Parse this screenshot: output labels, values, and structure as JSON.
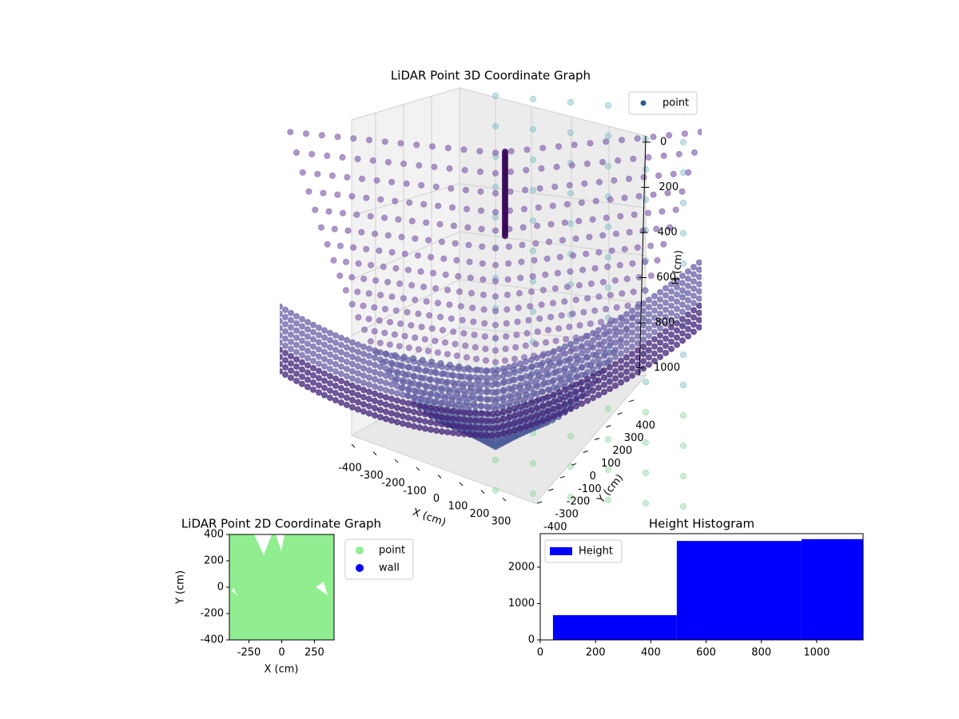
{
  "chart_data": [
    {
      "type": "scatter3d",
      "title": "LiDAR Point 3D Coordinate Graph",
      "xlabel": "X (cm)",
      "ylabel": "Y (cm)",
      "zlabel": "H (cm)",
      "xticks": [
        -400,
        -300,
        -200,
        -100,
        0,
        100,
        200,
        300
      ],
      "yticks": [
        -400,
        -300,
        -200,
        -100,
        0,
        100,
        200,
        300,
        400
      ],
      "zticks": [
        0,
        200,
        400,
        600,
        800,
        1000
      ],
      "series": [
        {
          "name": "point",
          "color": "#2c5f8a"
        }
      ],
      "legend": "upper right"
    },
    {
      "type": "scatter",
      "title": "LiDAR Point 2D Coordinate Graph",
      "xlabel": "X (cm)",
      "ylabel": "Y (cm)",
      "xlim": [
        -400,
        400
      ],
      "ylim": [
        -400,
        400
      ],
      "xticks": [
        -250,
        0,
        250
      ],
      "yticks": [
        -400,
        -200,
        0,
        200,
        400
      ],
      "series": [
        {
          "name": "point",
          "color": "#90ee90"
        },
        {
          "name": "wall",
          "color": "#0000ff"
        }
      ],
      "legend": "outside right"
    },
    {
      "type": "histogram",
      "title": "Height Histogram",
      "bins": [
        46,
        494,
        945,
        1168
      ],
      "series": [
        {
          "name": "Height",
          "color": "#0000ff",
          "values": [
            680,
            2720,
            2770
          ]
        }
      ],
      "xlim": [
        0,
        1168
      ],
      "ylim": [
        0,
        2920
      ],
      "xticks": [
        0,
        200,
        400,
        600,
        800,
        1000
      ],
      "yticks": [
        0,
        1000,
        2000
      ],
      "legend": "upper left"
    }
  ]
}
